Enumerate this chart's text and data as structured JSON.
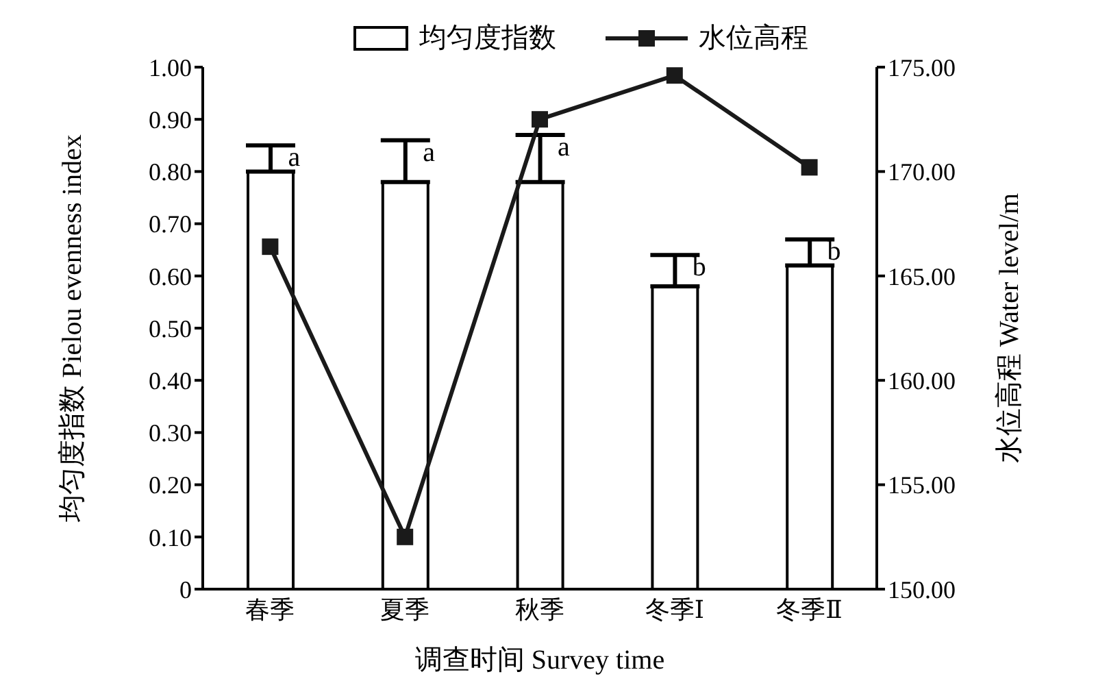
{
  "chart_data": {
    "type": "bar",
    "categories": [
      "春季",
      "夏季",
      "秋季",
      "冬季Ⅰ",
      "冬季Ⅱ"
    ],
    "xlabel": "调查时间 Survey time",
    "ylabel": "均匀度指数 Pielou evenness index",
    "y2label": "水位高程 Water level/m",
    "series": [
      {
        "name": "均匀度指数",
        "color": "#ffffff",
        "values": [
          0.8,
          0.78,
          0.78,
          0.58,
          0.62
        ],
        "errors": [
          [
            0.8,
            0.85
          ],
          [
            0.78,
            0.86
          ],
          [
            0.78,
            0.87
          ],
          [
            0.58,
            0.64
          ],
          [
            0.62,
            0.67
          ]
        ]
      },
      {
        "name": "水位高程",
        "type": "line",
        "axis": "y2",
        "color": "#1a1a1a",
        "values": [
          166.4,
          152.5,
          172.5,
          174.6,
          170.2
        ],
        "marker": "square",
        "line_style": "solid"
      }
    ],
    "ylim": [
      0,
      1
    ],
    "yticks": [
      {
        "value": 0,
        "label": "0"
      },
      {
        "value": 0.1,
        "label": "0.10"
      },
      {
        "value": 0.2,
        "label": "0.20"
      },
      {
        "value": 0.3,
        "label": "0.30"
      },
      {
        "value": 0.4,
        "label": "0.40"
      },
      {
        "value": 0.5,
        "label": "0.50"
      },
      {
        "value": 0.6,
        "label": "0.60"
      },
      {
        "value": 0.7,
        "label": "0.70"
      },
      {
        "value": 0.8,
        "label": "0.80"
      },
      {
        "value": 0.9,
        "label": "0.90"
      },
      {
        "value": 1,
        "label": "1.00"
      }
    ],
    "y2lim": [
      150,
      175
    ],
    "y2ticks": [
      {
        "value": 150,
        "label": "150.00"
      },
      {
        "value": 155,
        "label": "155.00"
      },
      {
        "value": 160,
        "label": "160.00"
      },
      {
        "value": 165,
        "label": "165.00"
      },
      {
        "value": 170,
        "label": "170.00"
      },
      {
        "value": 175,
        "label": "175.00"
      }
    ],
    "annotations": [
      {
        "text": "a",
        "x": "春季",
        "y": 0.85
      },
      {
        "text": "a",
        "x": "夏季",
        "y": 0.86
      },
      {
        "text": "a",
        "x": "秋季",
        "y": 0.87
      },
      {
        "text": "b",
        "x": "冬季Ⅰ",
        "y": 0.64
      },
      {
        "text": "b",
        "x": "冬季Ⅱ",
        "y": 0.67
      }
    ],
    "grid": false,
    "legend": "top"
  }
}
